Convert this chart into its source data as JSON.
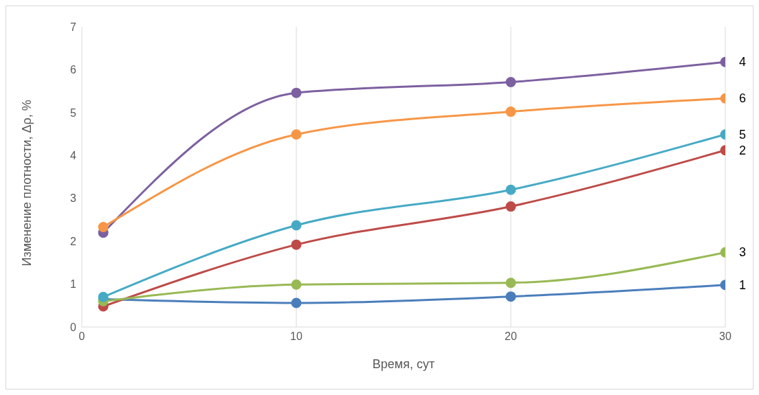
{
  "chart_data": {
    "type": "line",
    "xlabel": "Время, сут",
    "ylabel": "Изменение плотности, Δρ, %",
    "x": [
      1,
      10,
      20,
      30
    ],
    "series": [
      {
        "name": "1",
        "color": "#4a7ebb",
        "values": [
          0.65,
          0.56,
          0.71,
          0.98
        ]
      },
      {
        "name": "2",
        "color": "#be4b48",
        "values": [
          0.48,
          1.92,
          2.81,
          4.12
        ]
      },
      {
        "name": "3",
        "color": "#98b954",
        "values": [
          0.6,
          0.99,
          1.03,
          1.74
        ]
      },
      {
        "name": "4",
        "color": "#7d60a0",
        "values": [
          2.2,
          5.46,
          5.71,
          6.18
        ]
      },
      {
        "name": "5",
        "color": "#46aac5",
        "values": [
          0.7,
          2.37,
          3.2,
          4.49
        ]
      },
      {
        "name": "6",
        "color": "#f79646",
        "values": [
          2.33,
          4.49,
          5.02,
          5.33
        ]
      }
    ],
    "xlim": [
      0,
      30
    ],
    "xticks": [
      0,
      10,
      20,
      30
    ],
    "ylim": [
      0,
      7
    ],
    "yticks": [
      0,
      1,
      2,
      3,
      4,
      5,
      6,
      7
    ],
    "grid": "x",
    "legend": false,
    "marker": "circle",
    "line_style": "solid"
  }
}
